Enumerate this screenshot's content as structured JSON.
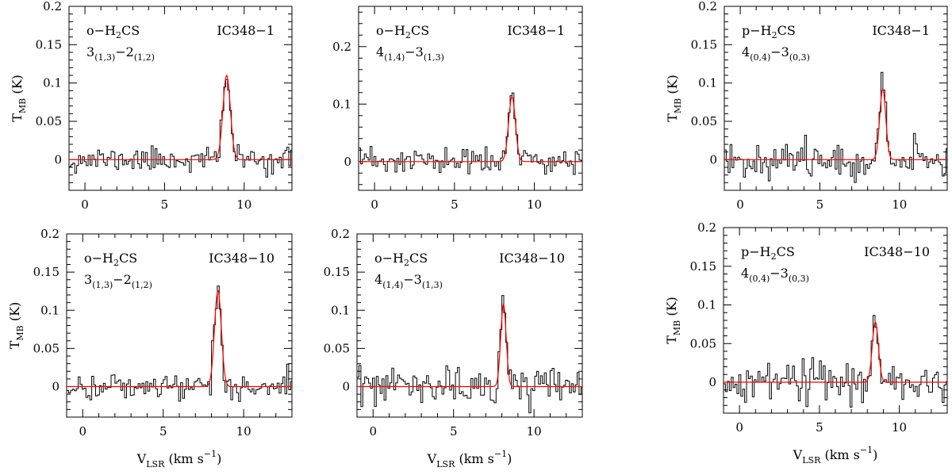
{
  "chart_data": [
    {
      "type": "line",
      "molecule": {
        "prefix": "o−H",
        "sub": "2",
        "suffix": "CS"
      },
      "transition": {
        "upper": "3",
        "upper_sub": "(1,3)",
        "sep": "−",
        "lower": "2",
        "lower_sub": "(1,2)"
      },
      "source": "IC348−1",
      "xlim": [
        -1,
        13
      ],
      "ylim": [
        -0.04,
        0.2
      ],
      "xticks": [
        {
          "v": 0,
          "label": "0"
        },
        {
          "v": 5,
          "label": "5"
        },
        {
          "v": 10,
          "label": "10"
        }
      ],
      "yticks": [
        {
          "v": 0,
          "label": "0"
        },
        {
          "v": 0.05,
          "label": "0.05"
        },
        {
          "v": 0.1,
          "label": "0.1"
        },
        {
          "v": 0.15,
          "label": "0.15"
        },
        {
          "v": 0.2,
          "label": "0.2"
        }
      ],
      "ylabel": {
        "main": "T",
        "sub": "MB",
        "unit": " (K)"
      },
      "show_xlabel": false,
      "fit": {
        "peak": 0.11,
        "center": 8.9,
        "fwhm": 0.55
      },
      "noise_rms": 0.008,
      "seed": 11
    },
    {
      "type": "line",
      "molecule": {
        "prefix": "o−H",
        "sub": "2",
        "suffix": "CS"
      },
      "transition": {
        "upper": "4",
        "upper_sub": "(1,4)",
        "sep": "−",
        "lower": "3",
        "lower_sub": "(1,3)"
      },
      "source": "IC348−1",
      "xlim": [
        -1,
        13
      ],
      "ylim": [
        -0.05,
        0.27
      ],
      "xticks": [
        {
          "v": 0,
          "label": "0"
        },
        {
          "v": 5,
          "label": "5"
        },
        {
          "v": 10,
          "label": "10"
        }
      ],
      "yticks": [
        {
          "v": 0,
          "label": "0"
        },
        {
          "v": 0.1,
          "label": "0.1"
        },
        {
          "v": 0.2,
          "label": "0.2"
        }
      ],
      "ylabel": null,
      "show_xlabel": false,
      "fit": {
        "peak": 0.113,
        "center": 8.6,
        "fwhm": 0.5
      },
      "noise_rms": 0.012,
      "seed": 23
    },
    {
      "type": "line",
      "molecule": {
        "prefix": "p−H",
        "sub": "2",
        "suffix": "CS"
      },
      "transition": {
        "upper": "4",
        "upper_sub": "(0,4)",
        "sep": "−",
        "lower": "3",
        "lower_sub": "(0,3)"
      },
      "source": "IC348−1",
      "xlim": [
        -1,
        13
      ],
      "ylim": [
        -0.04,
        0.2
      ],
      "xticks": [
        {
          "v": 0,
          "label": "0"
        },
        {
          "v": 5,
          "label": "5"
        },
        {
          "v": 10,
          "label": "10"
        }
      ],
      "yticks": [
        {
          "v": 0,
          "label": "0"
        },
        {
          "v": 0.05,
          "label": "0.05"
        },
        {
          "v": 0.1,
          "label": "0.1"
        },
        {
          "v": 0.15,
          "label": "0.15"
        },
        {
          "v": 0.2,
          "label": "0.2"
        }
      ],
      "ylabel": {
        "main": "T",
        "sub": "MB",
        "unit": " (K)"
      },
      "show_xlabel": false,
      "fit": {
        "peak": 0.092,
        "center": 8.95,
        "fwhm": 0.45
      },
      "noise_rms": 0.011,
      "seed": 37
    },
    {
      "type": "line",
      "molecule": {
        "prefix": "o−H",
        "sub": "2",
        "suffix": "CS"
      },
      "transition": {
        "upper": "3",
        "upper_sub": "(1,3)",
        "sep": "−",
        "lower": "2",
        "lower_sub": "(1,2)"
      },
      "source": "IC348−10",
      "xlim": [
        -1,
        13
      ],
      "ylim": [
        -0.04,
        0.2
      ],
      "xticks": [
        {
          "v": 0,
          "label": "0"
        },
        {
          "v": 5,
          "label": "5"
        },
        {
          "v": 10,
          "label": "10"
        }
      ],
      "yticks": [
        {
          "v": 0,
          "label": "0"
        },
        {
          "v": 0.05,
          "label": "0.05"
        },
        {
          "v": 0.1,
          "label": "0.1"
        },
        {
          "v": 0.15,
          "label": "0.15"
        },
        {
          "v": 0.2,
          "label": "0.2"
        }
      ],
      "ylabel": {
        "main": "T",
        "sub": "MB",
        "unit": " (K)"
      },
      "show_xlabel": true,
      "xlabel": {
        "main": "V",
        "sub": "LSR",
        "unit": " (km s",
        "sup": "−1",
        "close": ")"
      },
      "fit": {
        "peak": 0.126,
        "center": 8.4,
        "fwhm": 0.5
      },
      "noise_rms": 0.009,
      "seed": 41
    },
    {
      "type": "line",
      "molecule": {
        "prefix": "o−H",
        "sub": "2",
        "suffix": "CS"
      },
      "transition": {
        "upper": "4",
        "upper_sub": "(1,4)",
        "sep": "−",
        "lower": "3",
        "lower_sub": "(1,3)"
      },
      "source": "IC348−10",
      "xlim": [
        -1,
        13
      ],
      "ylim": [
        -0.04,
        0.2
      ],
      "xticks": [
        {
          "v": 0,
          "label": "0"
        },
        {
          "v": 5,
          "label": "5"
        },
        {
          "v": 10,
          "label": "10"
        }
      ],
      "yticks": [
        {
          "v": 0,
          "label": "0"
        },
        {
          "v": 0.05,
          "label": "0.05"
        },
        {
          "v": 0.1,
          "label": "0.1"
        },
        {
          "v": 0.15,
          "label": "0.15"
        },
        {
          "v": 0.2,
          "label": "0.2"
        }
      ],
      "ylabel": null,
      "show_xlabel": true,
      "xlabel": {
        "main": "V",
        "sub": "LSR",
        "unit": " (km s",
        "sup": "−1",
        "close": ")"
      },
      "fit": {
        "peak": 0.108,
        "center": 8.1,
        "fwhm": 0.4
      },
      "noise_rms": 0.012,
      "seed": 53
    },
    {
      "type": "line",
      "molecule": {
        "prefix": "p−H",
        "sub": "2",
        "suffix": "CS"
      },
      "transition": {
        "upper": "4",
        "upper_sub": "(0,4)",
        "sep": "−",
        "lower": "3",
        "lower_sub": "(0,3)"
      },
      "source": "IC348−10",
      "xlim": [
        -1,
        13
      ],
      "ylim": [
        -0.04,
        0.2
      ],
      "xticks": [
        {
          "v": 0,
          "label": "0"
        },
        {
          "v": 5,
          "label": "5"
        },
        {
          "v": 10,
          "label": "10"
        }
      ],
      "yticks": [
        {
          "v": 0,
          "label": "0"
        },
        {
          "v": 0.05,
          "label": "0.05"
        },
        {
          "v": 0.1,
          "label": "0.1"
        },
        {
          "v": 0.15,
          "label": "0.15"
        },
        {
          "v": 0.2,
          "label": "0.2"
        }
      ],
      "ylabel": {
        "main": "T",
        "sub": "MB",
        "unit": " (K)"
      },
      "show_xlabel": true,
      "xlabel": {
        "main": "V",
        "sub": "LSR",
        "unit": " (km s",
        "sup": "−1",
        "close": ")"
      },
      "fit": {
        "peak": 0.078,
        "center": 8.5,
        "fwhm": 0.45
      },
      "noise_rms": 0.012,
      "seed": 67
    }
  ],
  "colors": {
    "spectrum": "#000000",
    "fit": "#ff0000",
    "axes": "#000000"
  }
}
